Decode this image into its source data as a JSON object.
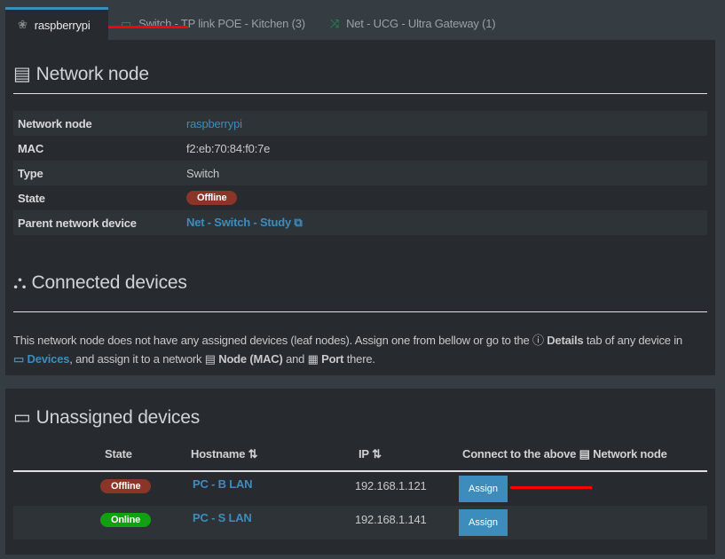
{
  "tabs": [
    {
      "label": "raspberrypi",
      "icon": "raspberry-icon",
      "active": true
    },
    {
      "label": "Switch - TP link POE - Kitchen (3)",
      "icon": "switch-icon"
    },
    {
      "label": "Net - UCG - Ultra Gateway (1)",
      "icon": "shuffle-icon"
    }
  ],
  "node": {
    "title": "Network node",
    "rows": [
      {
        "key": "Network node",
        "value": "raspberrypi"
      },
      {
        "key": "MAC",
        "value": "f2:eb:70:84:f0:7e"
      },
      {
        "key": "Type",
        "value": "Switch"
      },
      {
        "key": "State",
        "value": "Offline"
      },
      {
        "key": "Parent network device",
        "value": "Net - Switch - Study"
      }
    ]
  },
  "connected": {
    "title": "Connected devices",
    "note1": "This network node does not have any assigned devices (leaf nodes). Assign one from bellow or go to the",
    "details": "Details",
    "note2": "tab of any device in",
    "devices": "Devices",
    "note3": ", and assign it to a network",
    "node_mac": "Node (MAC)",
    "and": "and",
    "port": "Port",
    "there": "there."
  },
  "unassigned": {
    "title": "Unassigned devices",
    "headers": {
      "state": "State",
      "hostname": "Hostname",
      "ip": "IP",
      "connect": "Connect to the above",
      "connect2": "Network node"
    },
    "rows": [
      {
        "state": "Offline",
        "hostname": "PC - B LAN",
        "ip": "192.168.1.121",
        "action": "Assign"
      },
      {
        "state": "Online",
        "hostname": "PC - S LAN",
        "ip": "192.168.1.141",
        "action": "Assign"
      }
    ]
  },
  "colors": {
    "accent": "#3c8dbc",
    "offline": "#8b3428",
    "online": "#10a010",
    "annotation": "#ff0000"
  }
}
